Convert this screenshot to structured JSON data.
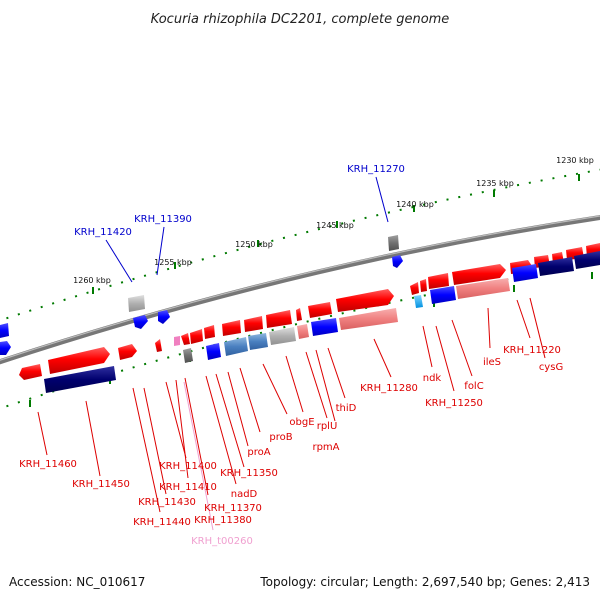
{
  "title": "Kocuria rhizophila DC2201, complete genome",
  "footer": {
    "accession": "Accession: NC_010617",
    "topology": "Topology: circular; Length: 2,697,540 bp; Genes: 2,413"
  },
  "ticks": [
    "1230 kbp",
    "1235 kbp",
    "1240 kbp",
    "1245 kbp",
    "1250 kbp",
    "1255 kbp",
    "1260 kbp"
  ],
  "colors": {
    "forward_gene": "#ff0000",
    "forward_gene_light": "#f08080",
    "reverse_gene": "#0000ff",
    "reverse_gene_dark": "#00006e",
    "rna_gene": "#ee82ee",
    "label_red": "#dd0000",
    "label_blue": "#0000cc",
    "label_pink": "#f0a0d0"
  },
  "labels_top": [
    "KRH_11270",
    "KRH_11390",
    "KRH_11420"
  ],
  "labels_bottom": [
    "KRH_11460",
    "KRH_11450",
    "KRH_11440",
    "KRH_11430",
    "KRH_11400",
    "KRH_11410",
    "KRH_11350",
    "nadD",
    "KRH_11370",
    "KRH_11380",
    "KRH_t00260",
    "proA",
    "proB",
    "obgE",
    "rplU",
    "rpmA",
    "thiD",
    "KRH_11280",
    "ndk",
    "KRH_11250",
    "folC",
    "ileS",
    "KRH_11220",
    "cysG"
  ]
}
